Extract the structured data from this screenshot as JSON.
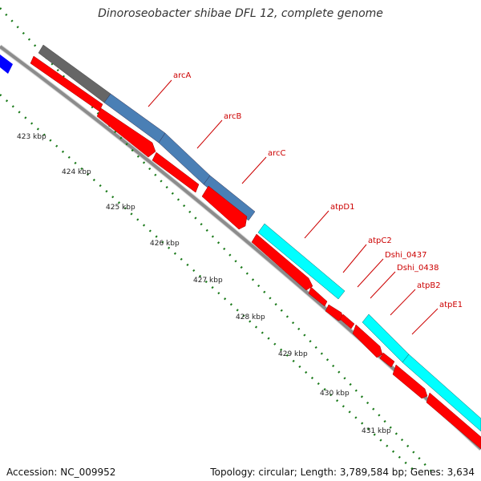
{
  "title": "Dinoroseobacter shibae DFL 12, complete genome",
  "footer": {
    "accession": "Accession: NC_009952",
    "summary": "Topology: circular; Length: 3,789,584 bp; Genes: 3,634"
  },
  "colors": {
    "backbone": "#8c8c8c",
    "forward_gene": "#ff0000",
    "tick": "#1a7a1a",
    "label": "#cc0000",
    "arc_operon": "#4a7fb5",
    "atp_operon": "#00ffff",
    "other": "#666666",
    "edge": "#0000ff"
  },
  "scale_labels": [
    "423 kbp",
    "424 kbp",
    "425 kbp",
    "426 kbp",
    "427 kbp",
    "428 kbp",
    "429 kbp",
    "430 kbp",
    "431 kbp"
  ],
  "genes": [
    {
      "name": "arcA",
      "label_text": "arcA"
    },
    {
      "name": "arcB",
      "label_text": "arcB"
    },
    {
      "name": "arcC",
      "label_text": "arcC"
    },
    {
      "name": "atpD1",
      "label_text": "atpD1"
    },
    {
      "name": "atpC2",
      "label_text": "atpC2"
    },
    {
      "name": "Dshi_0437",
      "label_text": "Dshi_0437"
    },
    {
      "name": "Dshi_0438",
      "label_text": "Dshi_0438"
    },
    {
      "name": "atpB2",
      "label_text": "atpB2"
    },
    {
      "name": "atpE1",
      "label_text": "atpE1"
    }
  ]
}
